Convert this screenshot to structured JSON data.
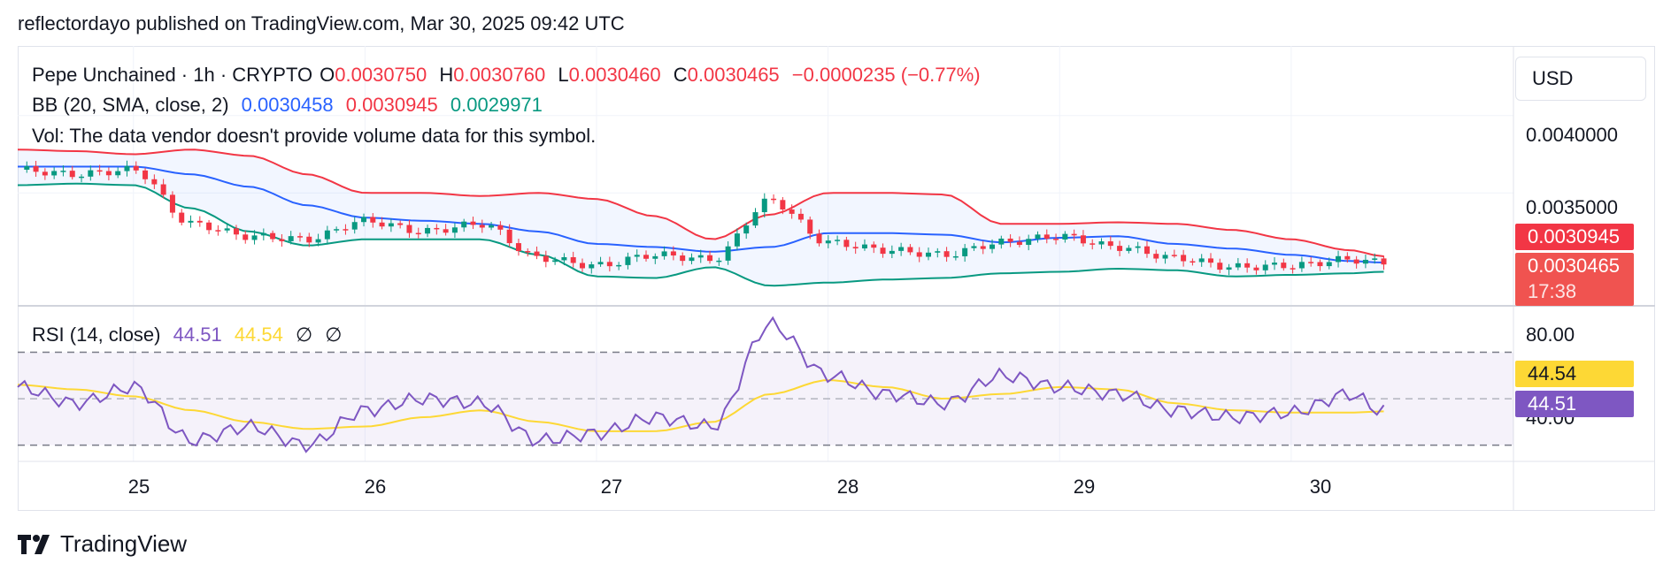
{
  "header": {
    "published": "reflectordayo published on TradingView.com, Mar 30, 2025 09:42 UTC"
  },
  "legend": {
    "symbol": "Pepe Unchained · 1h · CRYPTO",
    "o_label": "O",
    "o_value": "0.0030750",
    "h_label": "H",
    "h_value": "0.0030760",
    "l_label": "L",
    "l_value": "0.0030460",
    "c_label": "C",
    "c_value": "0.0030465",
    "change": "−0.0000235 (−0.77%)",
    "bb_label": "BB (20, SMA, close, 2)",
    "bb_basis": "0.0030458",
    "bb_upper": "0.0030945",
    "bb_lower": "0.0029971",
    "vol": "Vol: The data vendor doesn't provide volume data for this symbol.",
    "rsi_label": "RSI (14, close)",
    "rsi_value": "44.51",
    "rsi_ma": "44.54",
    "rsi_na1": "∅",
    "rsi_na2": "∅"
  },
  "price_axis": {
    "currency": "USD",
    "ticks": [
      "0.0040000",
      "0.0035000"
    ],
    "tag_upper": "0.0030945",
    "tag_price": "0.0030465",
    "tag_countdown": "17:38"
  },
  "rsi_axis": {
    "ticks": [
      "80.00",
      "40.00"
    ],
    "tag_ma": "44.54",
    "tag_rsi": "44.51"
  },
  "time_axis": {
    "ticks": [
      "25",
      "26",
      "27",
      "28",
      "29",
      "30"
    ]
  },
  "brand": {
    "name": "TradingView"
  },
  "colors": {
    "up": "#089981",
    "down": "#f23645",
    "bb_upper": "#f23645",
    "bb_basis": "#2962ff",
    "bb_lower": "#089981",
    "rsi": "#7e57c2",
    "rsi_ma": "#fdd835"
  },
  "chart_data": [
    {
      "type": "line",
      "title": "Pepe Unchained · 1h · CRYPTO",
      "x_ticks": [
        "25",
        "26",
        "27",
        "28",
        "29",
        "30"
      ],
      "x": [
        24.5,
        24.75,
        25.0,
        25.25,
        25.5,
        25.75,
        26.0,
        26.25,
        26.5,
        26.75,
        27.0,
        27.25,
        27.5,
        27.75,
        28.0,
        28.25,
        28.5,
        28.75,
        29.0,
        29.25,
        29.5,
        29.75,
        30.0,
        30.25,
        30.4
      ],
      "series": [
        {
          "name": "BB upper",
          "values": [
            0.00378,
            0.00377,
            0.00375,
            0.00378,
            0.00374,
            0.00362,
            0.0035,
            0.0035,
            0.00348,
            0.0035,
            0.00346,
            0.00335,
            0.0032,
            0.00336,
            0.0035,
            0.0035,
            0.00349,
            0.0033,
            0.0033,
            0.00331,
            0.0033,
            0.00326,
            0.0032,
            0.00313,
            0.00309
          ]
        },
        {
          "name": "BB basis",
          "values": [
            0.00367,
            0.00367,
            0.00367,
            0.00362,
            0.00354,
            0.00342,
            0.00334,
            0.00332,
            0.0033,
            0.00325,
            0.00317,
            0.00315,
            0.00312,
            0.00315,
            0.00324,
            0.00324,
            0.00323,
            0.00318,
            0.00321,
            0.00322,
            0.00317,
            0.00314,
            0.0031,
            0.00306,
            0.00305
          ]
        },
        {
          "name": "BB lower",
          "values": [
            0.00355,
            0.00356,
            0.00355,
            0.0034,
            0.00325,
            0.00316,
            0.0032,
            0.0032,
            0.0032,
            0.0031,
            0.00296,
            0.00295,
            0.00302,
            0.0029,
            0.00292,
            0.00294,
            0.00295,
            0.00298,
            0.00299,
            0.00301,
            0.003,
            0.00296,
            0.00297,
            0.00298,
            0.00299
          ]
        },
        {
          "name": "Close",
          "values": [
            0.00365,
            0.00362,
            0.00365,
            0.0033,
            0.00322,
            0.0032,
            0.00332,
            0.00325,
            0.0033,
            0.00308,
            0.00303,
            0.0031,
            0.00307,
            0.00345,
            0.00318,
            0.00313,
            0.0031,
            0.00318,
            0.00322,
            0.00315,
            0.00308,
            0.00302,
            0.00303,
            0.00307,
            0.00305
          ]
        }
      ],
      "yticks": [
        0.004,
        0.0035
      ],
      "ylim": [
        0.00277,
        0.00445
      ],
      "grid": true
    },
    {
      "type": "line",
      "title": "RSI (14, close)",
      "x": [
        24.5,
        24.75,
        25.0,
        25.25,
        25.5,
        25.75,
        26.0,
        26.25,
        26.5,
        26.75,
        27.0,
        27.25,
        27.5,
        27.75,
        28.0,
        28.25,
        28.5,
        28.75,
        29.0,
        29.25,
        29.5,
        29.75,
        30.0,
        30.25,
        30.4
      ],
      "series": [
        {
          "name": "RSI",
          "values": [
            55,
            48,
            55,
            32,
            38,
            30,
            45,
            50,
            48,
            32,
            35,
            42,
            38,
            82,
            60,
            52,
            48,
            60,
            55,
            52,
            45,
            42,
            44,
            52,
            44.51
          ]
        },
        {
          "name": "RSI MA",
          "values": [
            56,
            54,
            51,
            45,
            40,
            37,
            38,
            42,
            45,
            40,
            36,
            36,
            40,
            52,
            58,
            55,
            50,
            52,
            55,
            54,
            48,
            45,
            44,
            44,
            44.54
          ]
        }
      ],
      "bands": [
        70,
        50,
        30
      ],
      "yticks": [
        80,
        40
      ],
      "ylim": [
        23,
        90
      ]
    }
  ]
}
